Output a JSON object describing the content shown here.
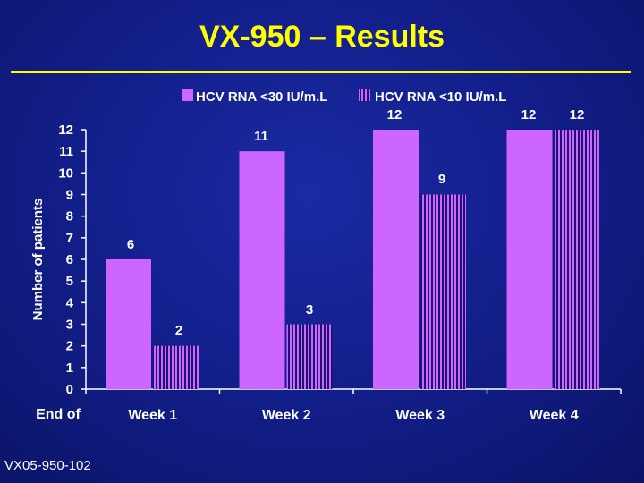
{
  "slide": {
    "title": "VX-950 – Results",
    "footer": "VX05-950-102"
  },
  "colors": {
    "background": "#131f8c",
    "title": "#ffff00",
    "series1": "#cc66ff",
    "series2": "#cc66ff",
    "axis": "#ffffff"
  },
  "chart_data": {
    "type": "bar",
    "categories": [
      "Week 1",
      "Week 2",
      "Week 3",
      "Week 4"
    ],
    "series": [
      {
        "name": "HCV RNA <30 IU/m.L",
        "values": [
          6,
          11,
          12,
          12
        ],
        "pattern": "solid"
      },
      {
        "name": "HCV RNA <10 IU/m.L",
        "values": [
          2,
          3,
          9,
          12
        ],
        "pattern": "vertical-stripes"
      }
    ],
    "xlabel": "End of",
    "ylabel": "Number of patients",
    "ylim": [
      0,
      12
    ],
    "yticks": [
      0,
      1,
      2,
      3,
      4,
      5,
      6,
      7,
      8,
      9,
      10,
      11,
      12
    ],
    "legend": "top",
    "grid": false
  }
}
